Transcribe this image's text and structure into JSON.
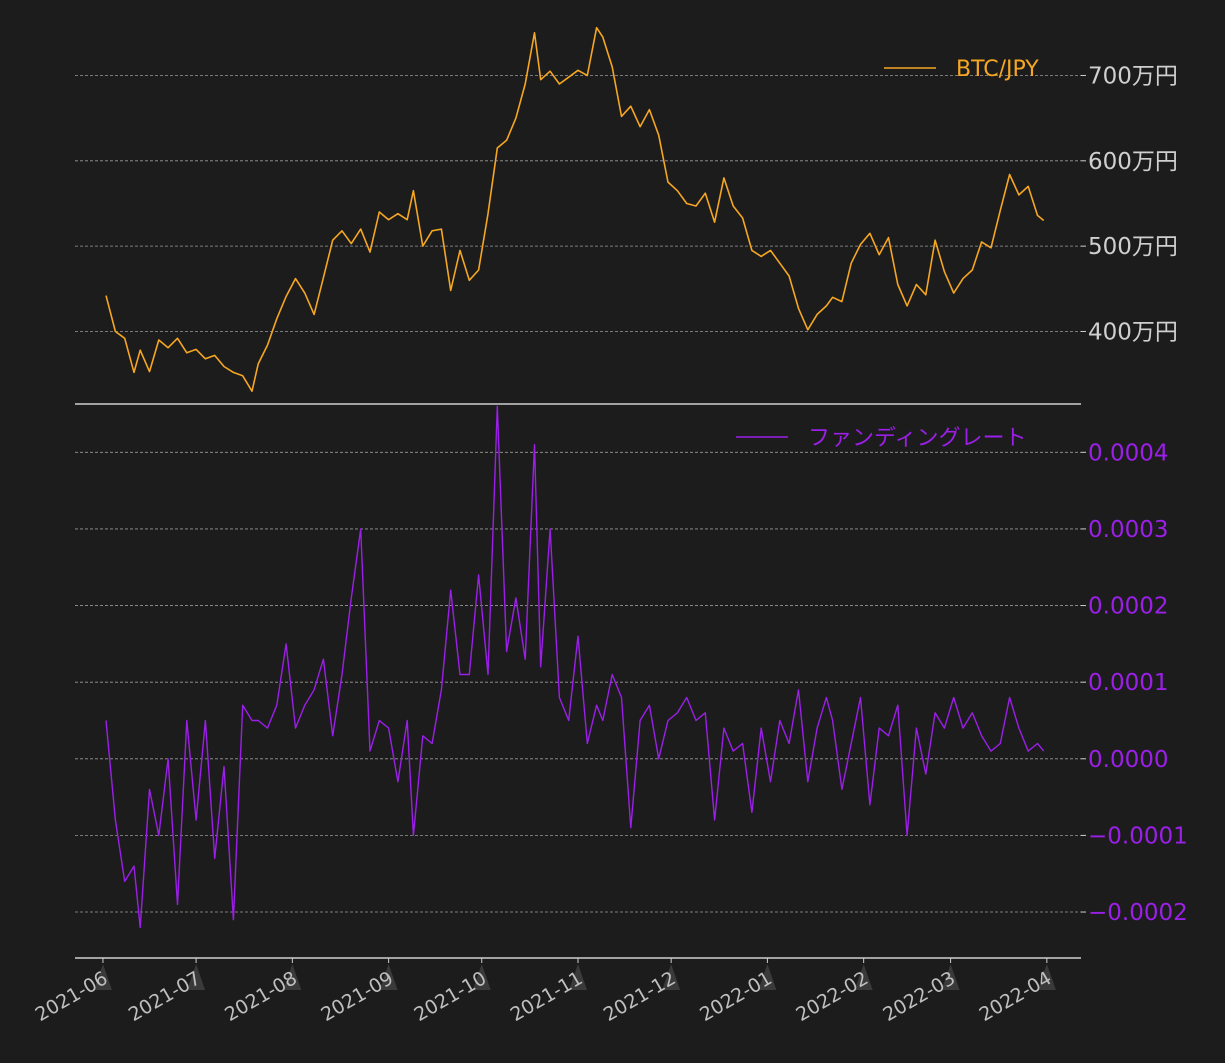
{
  "colors": {
    "background": "#1c1c1c",
    "btc": "#f5a623",
    "funding": "#9b1fe8",
    "grid": "#9a9a9a",
    "axis": "#cfcfcf",
    "xtick_text": "#bfbfbf",
    "triangle": "#3a3a3a"
  },
  "chart_data": [
    {
      "type": "line",
      "legend": "BTC/JPY",
      "legend_position": "top-right",
      "yaxis_side": "right",
      "grid": true,
      "ylim": [
        3150000,
        7650000
      ],
      "yticks": [
        4000000,
        5000000,
        6000000,
        7000000
      ],
      "ytick_labels": [
        "400万円",
        "500万円",
        "600万円",
        "700万円"
      ],
      "x_start": "2021-06-02",
      "x": [
        "2021-06-02",
        "2021-06-05",
        "2021-06-08",
        "2021-06-11",
        "2021-06-13",
        "2021-06-16",
        "2021-06-19",
        "2021-06-22",
        "2021-06-25",
        "2021-06-28",
        "2021-07-01",
        "2021-07-04",
        "2021-07-07",
        "2021-07-10",
        "2021-07-13",
        "2021-07-16",
        "2021-07-19",
        "2021-07-21",
        "2021-07-24",
        "2021-07-27",
        "2021-07-30",
        "2021-08-02",
        "2021-08-05",
        "2021-08-08",
        "2021-08-11",
        "2021-08-14",
        "2021-08-17",
        "2021-08-20",
        "2021-08-23",
        "2021-08-26",
        "2021-08-29",
        "2021-09-01",
        "2021-09-04",
        "2021-09-07",
        "2021-09-09",
        "2021-09-12",
        "2021-09-15",
        "2021-09-18",
        "2021-09-21",
        "2021-09-24",
        "2021-09-27",
        "2021-09-30",
        "2021-10-03",
        "2021-10-06",
        "2021-10-09",
        "2021-10-12",
        "2021-10-15",
        "2021-10-18",
        "2021-10-20",
        "2021-10-23",
        "2021-10-26",
        "2021-10-29",
        "2021-11-01",
        "2021-11-04",
        "2021-11-07",
        "2021-11-09",
        "2021-11-12",
        "2021-11-15",
        "2021-11-18",
        "2021-11-21",
        "2021-11-24",
        "2021-11-27",
        "2021-11-30",
        "2021-12-03",
        "2021-12-06",
        "2021-12-09",
        "2021-12-12",
        "2021-12-15",
        "2021-12-18",
        "2021-12-21",
        "2021-12-24",
        "2021-12-27",
        "2021-12-30",
        "2022-01-02",
        "2022-01-05",
        "2022-01-08",
        "2022-01-11",
        "2022-01-14",
        "2022-01-17",
        "2022-01-20",
        "2022-01-22",
        "2022-01-25",
        "2022-01-28",
        "2022-01-31",
        "2022-02-03",
        "2022-02-06",
        "2022-02-09",
        "2022-02-12",
        "2022-02-15",
        "2022-02-18",
        "2022-02-21",
        "2022-02-24",
        "2022-02-27",
        "2022-03-02",
        "2022-03-05",
        "2022-03-08",
        "2022-03-11",
        "2022-03-14",
        "2022-03-17",
        "2022-03-20",
        "2022-03-23",
        "2022-03-26",
        "2022-03-29",
        "2022-03-31"
      ],
      "values": [
        4420000,
        4000000,
        3920000,
        3520000,
        3780000,
        3530000,
        3900000,
        3810000,
        3920000,
        3750000,
        3790000,
        3680000,
        3720000,
        3590000,
        3520000,
        3480000,
        3300000,
        3620000,
        3840000,
        4150000,
        4410000,
        4620000,
        4450000,
        4200000,
        4630000,
        5070000,
        5180000,
        5030000,
        5200000,
        4930000,
        5400000,
        5310000,
        5380000,
        5310000,
        5650000,
        5000000,
        5180000,
        5200000,
        4480000,
        4950000,
        4600000,
        4720000,
        5380000,
        6150000,
        6240000,
        6500000,
        6900000,
        7500000,
        6950000,
        7050000,
        6900000,
        6980000,
        7060000,
        7000000,
        7560000,
        7450000,
        7100000,
        6520000,
        6640000,
        6400000,
        6600000,
        6300000,
        5750000,
        5650000,
        5500000,
        5470000,
        5620000,
        5280000,
        5800000,
        5470000,
        5330000,
        4950000,
        4880000,
        4950000,
        4800000,
        4650000,
        4270000,
        4020000,
        4200000,
        4300000,
        4400000,
        4350000,
        4800000,
        5020000,
        5150000,
        4900000,
        5100000,
        4550000,
        4300000,
        4550000,
        4430000,
        5070000,
        4700000,
        4450000,
        4620000,
        4720000,
        5050000,
        4980000,
        5420000,
        5840000,
        5600000,
        5700000,
        5360000,
        5300000
      ]
    },
    {
      "type": "line",
      "legend": "ファンディングレート",
      "legend_position": "top-right",
      "yaxis_side": "right",
      "grid": true,
      "ylim": [
        -0.00026,
        0.00045
      ],
      "yticks": [
        -0.0002,
        -0.0001,
        0.0,
        0.0001,
        0.0002,
        0.0003,
        0.0004
      ],
      "ytick_labels": [
        "−0.0002",
        "−0.0001",
        "0.0000",
        "0.0001",
        "0.0002",
        "0.0003",
        "0.0004"
      ],
      "x": [
        "2021-06-02",
        "2021-06-05",
        "2021-06-08",
        "2021-06-11",
        "2021-06-13",
        "2021-06-16",
        "2021-06-19",
        "2021-06-22",
        "2021-06-25",
        "2021-06-28",
        "2021-07-01",
        "2021-07-04",
        "2021-07-07",
        "2021-07-10",
        "2021-07-13",
        "2021-07-16",
        "2021-07-19",
        "2021-07-21",
        "2021-07-24",
        "2021-07-27",
        "2021-07-30",
        "2021-08-02",
        "2021-08-05",
        "2021-08-08",
        "2021-08-11",
        "2021-08-14",
        "2021-08-17",
        "2021-08-20",
        "2021-08-23",
        "2021-08-26",
        "2021-08-29",
        "2021-09-01",
        "2021-09-04",
        "2021-09-07",
        "2021-09-09",
        "2021-09-12",
        "2021-09-15",
        "2021-09-18",
        "2021-09-21",
        "2021-09-24",
        "2021-09-27",
        "2021-09-30",
        "2021-10-03",
        "2021-10-06",
        "2021-10-09",
        "2021-10-12",
        "2021-10-15",
        "2021-10-18",
        "2021-10-20",
        "2021-10-23",
        "2021-10-26",
        "2021-10-29",
        "2021-11-01",
        "2021-11-04",
        "2021-11-07",
        "2021-11-09",
        "2021-11-12",
        "2021-11-15",
        "2021-11-18",
        "2021-11-21",
        "2021-11-24",
        "2021-11-27",
        "2021-11-30",
        "2021-12-03",
        "2021-12-06",
        "2021-12-09",
        "2021-12-12",
        "2021-12-15",
        "2021-12-18",
        "2021-12-21",
        "2021-12-24",
        "2021-12-27",
        "2021-12-30",
        "2022-01-02",
        "2022-01-05",
        "2022-01-08",
        "2022-01-11",
        "2022-01-14",
        "2022-01-17",
        "2022-01-20",
        "2022-01-22",
        "2022-01-25",
        "2022-01-28",
        "2022-01-31",
        "2022-02-03",
        "2022-02-06",
        "2022-02-09",
        "2022-02-12",
        "2022-02-15",
        "2022-02-18",
        "2022-02-21",
        "2022-02-24",
        "2022-02-27",
        "2022-03-02",
        "2022-03-05",
        "2022-03-08",
        "2022-03-11",
        "2022-03-14",
        "2022-03-17",
        "2022-03-20",
        "2022-03-23",
        "2022-03-26",
        "2022-03-29",
        "2022-03-31"
      ],
      "values": [
        5e-05,
        -8e-05,
        -0.00016,
        -0.00014,
        -0.00022,
        -4e-05,
        -0.0001,
        0.0,
        -0.00019,
        5e-05,
        -8e-05,
        5e-05,
        -0.00013,
        -1e-05,
        -0.00021,
        7e-05,
        5e-05,
        5e-05,
        4e-05,
        7e-05,
        0.00015,
        4e-05,
        7e-05,
        9e-05,
        0.00013,
        3e-05,
        0.00011,
        0.00021,
        0.0003,
        1e-05,
        5e-05,
        4e-05,
        -3e-05,
        5e-05,
        -0.0001,
        3e-05,
        2e-05,
        9e-05,
        0.00022,
        0.00011,
        0.00011,
        0.00024,
        0.00011,
        0.00046,
        0.00014,
        0.00021,
        0.00013,
        0.00041,
        0.00012,
        0.0003,
        8e-05,
        5e-05,
        0.00016,
        2e-05,
        7e-05,
        5e-05,
        0.00011,
        8e-05,
        -9e-05,
        5e-05,
        7e-05,
        0.0,
        5e-05,
        6e-05,
        8e-05,
        5e-05,
        6e-05,
        -8e-05,
        4e-05,
        1e-05,
        2e-05,
        -7e-05,
        4e-05,
        -3e-05,
        5e-05,
        2e-05,
        9e-05,
        -3e-05,
        4e-05,
        8e-05,
        5e-05,
        -4e-05,
        2e-05,
        8e-05,
        -6e-05,
        4e-05,
        3e-05,
        7e-05,
        -0.0001,
        4e-05,
        -2e-05,
        6e-05,
        4e-05,
        8e-05,
        4e-05,
        6e-05,
        3e-05,
        1e-05,
        2e-05,
        8e-05,
        4e-05,
        1e-05,
        2e-05,
        1e-05
      ]
    }
  ],
  "xaxis": {
    "tick_labels": [
      "2021-06",
      "2021-07",
      "2021-08",
      "2021-09",
      "2021-10",
      "2021-11",
      "2021-12",
      "2022-01",
      "2022-02",
      "2022-03",
      "2022-04"
    ],
    "tick_dates": [
      "2021-06-01",
      "2021-07-01",
      "2021-08-01",
      "2021-09-01",
      "2021-10-01",
      "2021-11-01",
      "2021-12-01",
      "2022-01-01",
      "2022-02-01",
      "2022-03-01",
      "2022-04-01"
    ],
    "label_rotation_deg": -30
  }
}
